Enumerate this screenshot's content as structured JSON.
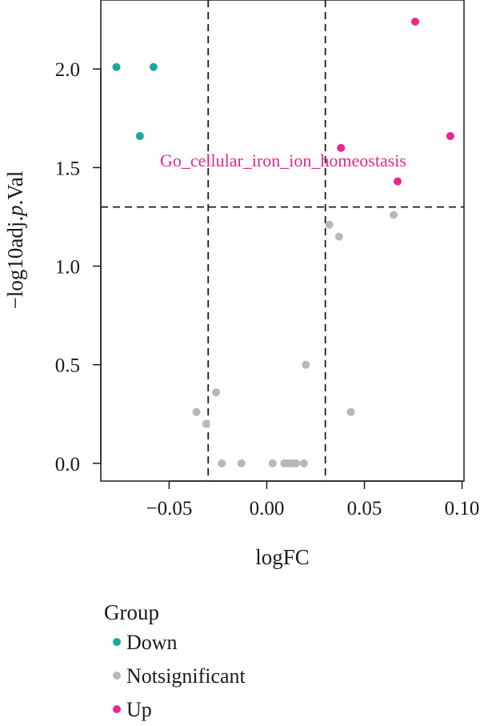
{
  "chart_data": {
    "type": "scatter",
    "title": "",
    "xlabel": "logFC",
    "ylabel_main": "−log10adj.",
    "ylabel_italic": "p",
    "ylabel_end": ".Val",
    "xlim": [
      -0.085,
      0.101
    ],
    "ylim": [
      -0.09,
      2.35
    ],
    "x_ticks": [
      -0.05,
      0.0,
      0.05,
      0.1
    ],
    "x_tick_labels": [
      "−0.05",
      "0.00",
      "0.05",
      "0.10"
    ],
    "y_ticks": [
      0.0,
      0.5,
      1.0,
      1.5,
      2.0
    ],
    "y_tick_labels": [
      "0.0",
      "0.5",
      "1.0",
      "1.5",
      "2.0"
    ],
    "thresholds": {
      "logFC": [
        -0.03,
        0.03
      ],
      "neglog10_adj_p": 1.3
    },
    "grid": false,
    "legend": {
      "title": "Group",
      "position": "bottom"
    },
    "series": [
      {
        "name": "Down",
        "color": "#1aa99a",
        "points": [
          [
            -0.077,
            2.01
          ],
          [
            -0.058,
            2.01
          ],
          [
            -0.065,
            1.66
          ]
        ]
      },
      {
        "name": "Notsignificant",
        "color": "#b8b8b8",
        "points": [
          [
            0.032,
            1.21
          ],
          [
            0.037,
            1.15
          ],
          [
            0.065,
            1.26
          ],
          [
            0.02,
            0.5
          ],
          [
            -0.026,
            0.36
          ],
          [
            -0.036,
            0.26
          ],
          [
            -0.031,
            0.2
          ],
          [
            0.043,
            0.26
          ],
          [
            -0.023,
            0.0
          ],
          [
            -0.013,
            0.0
          ],
          [
            0.003,
            0.0
          ],
          [
            0.009,
            0.0
          ],
          [
            0.011,
            0.0
          ],
          [
            0.013,
            0.0
          ],
          [
            0.015,
            0.0
          ],
          [
            0.019,
            0.0
          ]
        ]
      },
      {
        "name": "Up",
        "color": "#e8278e",
        "points": [
          [
            0.076,
            2.24
          ],
          [
            0.094,
            1.66
          ],
          [
            0.038,
            1.6
          ],
          [
            0.067,
            1.43
          ]
        ]
      }
    ],
    "annotations": [
      {
        "text": "Go_cellular_iron_ion_homeostasis",
        "color": "#e8278e"
      }
    ]
  }
}
